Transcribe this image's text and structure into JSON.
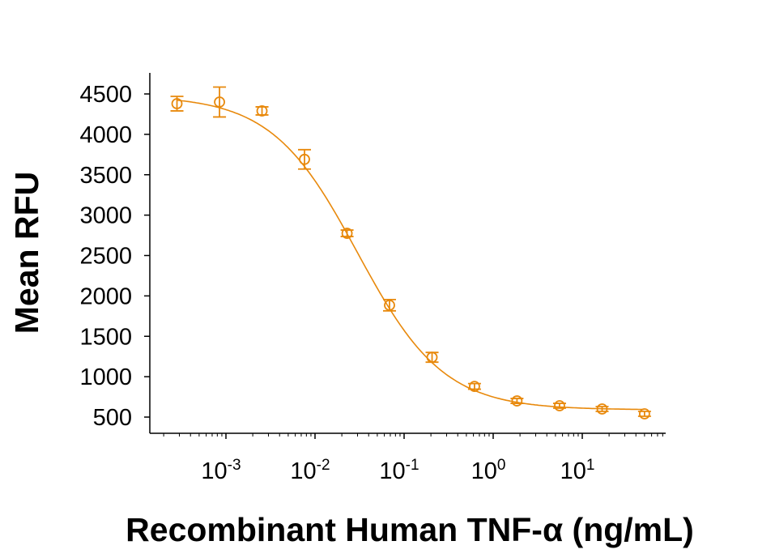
{
  "chart_data": {
    "type": "scatter",
    "title": "",
    "xlabel": "Recombinant Human TNF-α (ng/mL)",
    "ylabel": "Mean RFU",
    "xscale": "log",
    "xlim": [
      0.00014,
      87
    ],
    "ylim": [
      350,
      4700
    ],
    "yticks": [
      500,
      1000,
      1500,
      2000,
      2500,
      3000,
      3500,
      4000,
      4500
    ],
    "xticks": [
      {
        "value": 0.001,
        "base": "10",
        "exp": "-3"
      },
      {
        "value": 0.01,
        "base": "10",
        "exp": "-2"
      },
      {
        "value": 0.1,
        "base": "10",
        "exp": "-1"
      },
      {
        "value": 1,
        "base": "10",
        "exp": "0"
      },
      {
        "value": 10,
        "base": "10",
        "exp": "1"
      }
    ],
    "grid": false,
    "color": "#E8890C",
    "series": [
      {
        "marker": "open-circle",
        "error_bars": true,
        "fit_curve": "4-parameter logistic",
        "points": [
          {
            "x": 0.000282,
            "y": 4380,
            "err": 90
          },
          {
            "x": 0.000847,
            "y": 4400,
            "err": 185
          },
          {
            "x": 0.00254,
            "y": 4290,
            "err": 50
          },
          {
            "x": 0.00762,
            "y": 3690,
            "err": 120
          },
          {
            "x": 0.0229,
            "y": 2775,
            "err": 40
          },
          {
            "x": 0.0686,
            "y": 1885,
            "err": 70
          },
          {
            "x": 0.206,
            "y": 1240,
            "err": 60
          },
          {
            "x": 0.617,
            "y": 880,
            "err": 35
          },
          {
            "x": 1.85,
            "y": 700,
            "err": 30
          },
          {
            "x": 5.56,
            "y": 640,
            "err": 30
          },
          {
            "x": 16.7,
            "y": 600,
            "err": 30
          },
          {
            "x": 50,
            "y": 540,
            "err": 30
          }
        ]
      }
    ]
  }
}
